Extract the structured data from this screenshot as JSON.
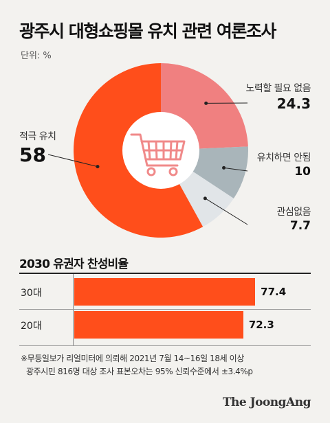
{
  "header": {
    "title": "광주시 대형쇼핑몰 유치 관련 여론조사",
    "unit": "단위: %"
  },
  "icons": {
    "center": "shopping-cart-icon"
  },
  "colors": {
    "slice_strong": "#ff4e1b",
    "slice_pink": "#f08080",
    "slice_gray": "#a9b5ba",
    "slice_light": "#e1e5e8",
    "bar": "#ff4e1b"
  },
  "chart_data": [
    {
      "type": "pie",
      "categories": [
        "노력할 필요 없음",
        "유치하면 안됨",
        "관심없음",
        "적극 유치"
      ],
      "values": [
        24.3,
        10,
        7.7,
        58
      ],
      "value_labels": [
        "24.3",
        "10",
        "7.7",
        "58"
      ]
    },
    {
      "type": "bar",
      "title": "2030 유권자 찬성비율",
      "categories": [
        "30대",
        "20대"
      ],
      "values": [
        77.4,
        72.3
      ],
      "value_labels": [
        "77.4",
        "72.3"
      ],
      "xlim": [
        0,
        100
      ]
    }
  ],
  "notes": {
    "line1": "※무등일보가 리얼미터에 의뢰해 2021년 7월 14~16일 18세 이상",
    "line2": "광주시민 816명 대상 조사 표본오차는 95% 신뢰수준에서 ±3.4%p"
  },
  "footer": {
    "brand": "The JoongAng"
  }
}
